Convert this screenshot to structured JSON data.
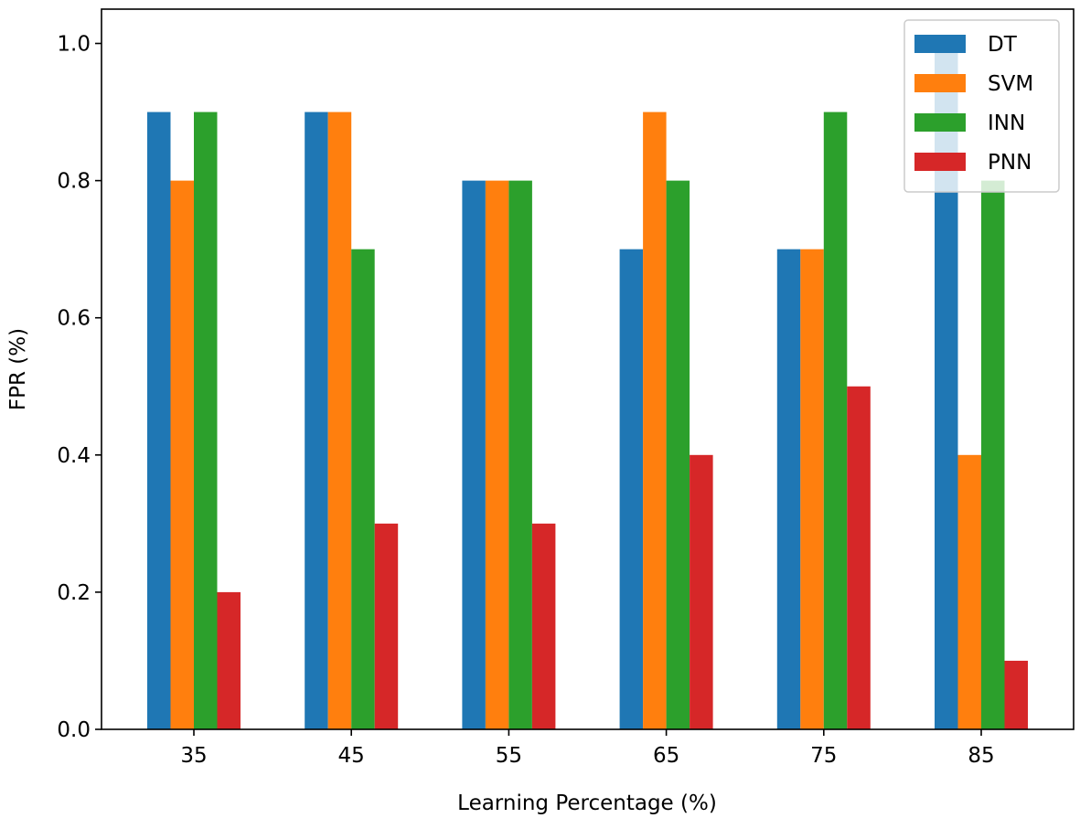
{
  "chart_data": {
    "type": "bar",
    "xlabel": "Learning Percentage (%)",
    "ylabel": "FPR (%)",
    "categories": [
      "35",
      "45",
      "55",
      "65",
      "75",
      "85"
    ],
    "ylim": [
      0,
      1.05
    ],
    "yticks": [
      "0.0",
      "0.2",
      "0.4",
      "0.6",
      "0.8",
      "1.0"
    ],
    "legend_position": "top-right",
    "grid": false,
    "series": [
      {
        "name": "DT",
        "color": "#1f77b4",
        "values": [
          0.9,
          0.9,
          0.8,
          0.7,
          0.7,
          1.0
        ]
      },
      {
        "name": "SVM",
        "color": "#ff7f0e",
        "values": [
          0.8,
          0.9,
          0.8,
          0.9,
          0.7,
          0.4
        ]
      },
      {
        "name": "INN",
        "color": "#2ca02c",
        "values": [
          0.9,
          0.7,
          0.8,
          0.8,
          0.9,
          0.8
        ]
      },
      {
        "name": "PNN",
        "color": "#d62728",
        "values": [
          0.2,
          0.3,
          0.3,
          0.4,
          0.5,
          0.1
        ]
      }
    ]
  }
}
